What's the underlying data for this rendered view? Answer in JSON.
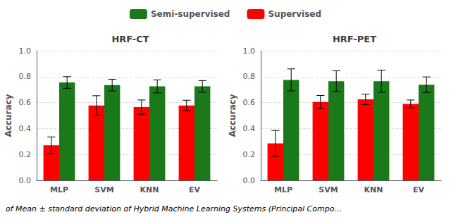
{
  "chart_data": [
    {
      "type": "bar",
      "title": "HRF-CT",
      "ylabel": "Accuracy",
      "categories": [
        "MLP",
        "SVM",
        "KNN",
        "EV"
      ],
      "series": [
        {
          "name": "Supervised",
          "color": "#ff0000",
          "values": [
            0.27,
            0.578,
            0.565,
            0.578
          ],
          "errors": [
            0.065,
            0.075,
            0.055,
            0.04
          ]
        },
        {
          "name": "Semi-supervised",
          "color": "#1a7a1a",
          "values": [
            0.755,
            0.735,
            0.725,
            0.725
          ],
          "errors": [
            0.045,
            0.045,
            0.05,
            0.045
          ]
        }
      ],
      "ylim": [
        0.0,
        1.0
      ],
      "yticks": [
        {
          "value": 0.0,
          "label": "0.0"
        },
        0.2,
        0.4,
        0.6,
        0.8,
        {
          "value": 1.0,
          "label": "1.0"
        }
      ],
      "grid": true,
      "legend": "upper center",
      "annotations": [
        "of Mean ± standard deviation of Hybrid Machine Learning Systems (Principal Compo..."
      ]
    },
    {
      "type": "bar",
      "title": "HRF-PET",
      "ylabel": "Accuracy",
      "categories": [
        "MLP",
        "SVM",
        "KNN",
        "EV"
      ],
      "series": [
        {
          "name": "Supervised",
          "color": "#ff0000",
          "values": [
            0.285,
            0.605,
            0.625,
            0.59
          ],
          "errors": [
            0.1,
            0.05,
            0.04,
            0.03
          ]
        },
        {
          "name": "Semi-supervised",
          "color": "#1a7a1a",
          "values": [
            0.775,
            0.765,
            0.765,
            0.738
          ],
          "errors": [
            0.085,
            0.08,
            0.085,
            0.06
          ]
        }
      ],
      "ylim": [
        0.0,
        1.0
      ],
      "yticks": [
        {
          "value": 0.0,
          "label": "0.0"
        },
        0.2,
        0.4,
        0.6,
        0.8,
        {
          "value": 1.0,
          "label": "1.0"
        }
      ],
      "grid": true,
      "legend": "upper center"
    }
  ]
}
